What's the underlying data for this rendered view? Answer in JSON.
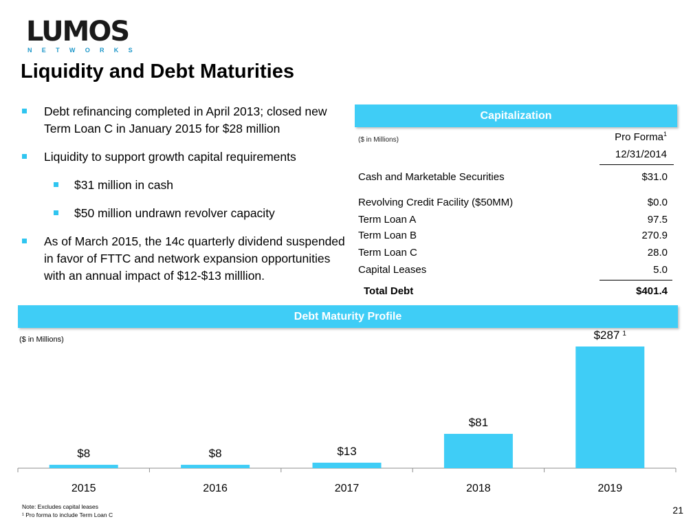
{
  "logo": {
    "name": "LUMOS",
    "sub": "NETWORKS"
  },
  "title": "Liquidity and Debt Maturities",
  "bullets": [
    {
      "text": "Debt refinancing completed in April 2013; closed new Term Loan C in January 2015 for $28 million",
      "level": 1
    },
    {
      "text": "Liquidity to support growth capital requirements",
      "level": 1
    },
    {
      "text": "$31 million in cash",
      "level": 2
    },
    {
      "text": "$50 million undrawn revolver capacity",
      "level": 2
    },
    {
      "text": "As of March 2015, the 14c quarterly dividend suspended in favor of FTTC and network expansion opportunities with an annual impact of $12-$13 milllion.",
      "level": 1
    }
  ],
  "capitalization": {
    "header": "Capitalization",
    "units": "($ in Millions)",
    "col_header": "Pro Forma",
    "col_header_sup": "1",
    "col_date": "12/31/2014",
    "rows": [
      {
        "label": "Cash and Marketable Securities",
        "value": "$31.0"
      },
      {
        "label": "Revolving Credit Facility ($50MM)",
        "value": "$0.0"
      },
      {
        "label": "Term Loan A",
        "value": "97.5"
      },
      {
        "label": "Term Loan B",
        "value": "270.9"
      },
      {
        "label": "Term Loan C",
        "value": "28.0"
      },
      {
        "label": "Capital Leases",
        "value": "5.0"
      }
    ],
    "total": {
      "label": "Total Debt",
      "value": "$401.4"
    }
  },
  "debt_maturity": {
    "header": "Debt Maturity Profile",
    "units": "($ in Millions)"
  },
  "chart_data": {
    "type": "bar",
    "title": "Debt Maturity Profile",
    "ylabel": "($ in Millions)",
    "categories": [
      "2015",
      "2016",
      "2017",
      "2018",
      "2019"
    ],
    "values": [
      8,
      8,
      13,
      81,
      287
    ],
    "data_labels": [
      "$8",
      "$8",
      "$13",
      "$81",
      "$287"
    ],
    "label_superscripts": [
      "",
      "",
      "",
      "",
      "1"
    ],
    "ylim": [
      0,
      300
    ],
    "bar_color": "#3fcdf6",
    "grid": false
  },
  "footnotes": [
    "Note: Excludes capital leases",
    "¹  Pro forma to include Term Loan C"
  ],
  "page_number": "21",
  "colors": {
    "accent": "#3fcdf6",
    "bullet": "#2fc5f0",
    "logo_blue": "#1d97c9"
  }
}
